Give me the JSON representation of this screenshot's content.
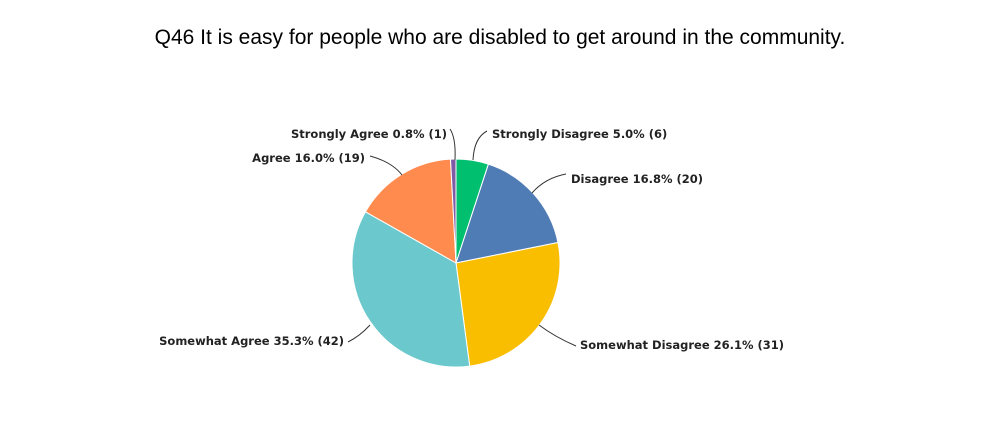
{
  "chart_data": {
    "type": "pie",
    "title": "Q46 It is easy for people who are disabled to get around in the community.",
    "slices": [
      {
        "label": "Strongly Disagree",
        "percent": 5.0,
        "count": 6,
        "color": "#00BF6F"
      },
      {
        "label": "Disagree",
        "percent": 16.8,
        "count": 20,
        "color": "#507CB6"
      },
      {
        "label": "Somewhat Disagree",
        "percent": 26.1,
        "count": 31,
        "color": "#F9BE00"
      },
      {
        "label": "Somewhat Agree",
        "percent": 35.3,
        "count": 42,
        "color": "#6BC8CD"
      },
      {
        "label": "Agree",
        "percent": 16.0,
        "count": 19,
        "color": "#FF8B4F"
      },
      {
        "label": "Strongly Agree",
        "percent": 0.8,
        "count": 1,
        "color": "#7D5BA6"
      }
    ],
    "start_angle": "top",
    "direction": "clockwise"
  }
}
